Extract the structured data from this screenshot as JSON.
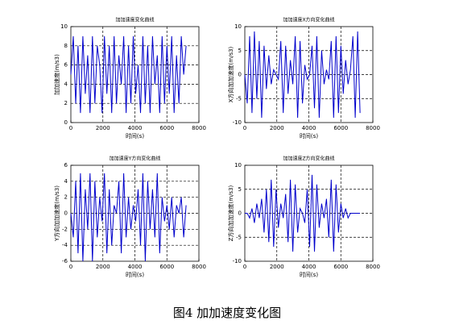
{
  "chart_data": [
    {
      "type": "line",
      "title": "加加速度变化曲线",
      "xlabel": "时间(s)",
      "ylabel": "加加速度(m/s3)",
      "xlim": [
        0,
        8000
      ],
      "xticks": [
        0,
        2000,
        4000,
        6000,
        8000
      ],
      "ylim": [
        0,
        10
      ],
      "yticks": [
        0,
        2,
        4,
        6,
        8,
        10
      ],
      "grid": true,
      "color": "#0000cc",
      "x": [
        0,
        150,
        300,
        450,
        600,
        750,
        900,
        1050,
        1200,
        1350,
        1500,
        1650,
        1800,
        1950,
        2100,
        2250,
        2400,
        2550,
        2700,
        2850,
        3000,
        3150,
        3300,
        3450,
        3600,
        3750,
        3900,
        4050,
        4200,
        4350,
        4500,
        4650,
        4800,
        4950,
        5100,
        5250,
        5400,
        5550,
        5700,
        5850,
        6000,
        6150,
        6300,
        6450,
        6600,
        6750,
        6900,
        7050,
        7200
      ],
      "values": [
        5,
        9,
        2,
        8,
        1,
        9,
        3,
        7,
        1,
        9,
        2,
        8,
        6,
        1,
        9,
        3,
        8,
        1,
        9,
        2,
        7,
        4,
        9,
        1,
        8,
        2,
        9,
        3,
        6,
        1,
        9,
        2,
        8,
        1,
        9,
        4,
        7,
        1,
        9,
        2,
        8,
        3,
        9,
        1,
        7,
        2,
        9,
        5,
        8
      ]
    },
    {
      "type": "line",
      "title": "加加速度X方向变化曲线",
      "xlabel": "时间(s)",
      "ylabel": "X方向加加速度(m/s3)",
      "xlim": [
        0,
        8000
      ],
      "xticks": [
        0,
        2000,
        4000,
        6000,
        8000
      ],
      "ylim": [
        -10,
        10
      ],
      "yticks": [
        -10,
        -5,
        0,
        5,
        10
      ],
      "grid": true,
      "color": "#0000cc",
      "x": [
        0,
        150,
        300,
        450,
        600,
        750,
        900,
        1050,
        1200,
        1350,
        1500,
        1650,
        1800,
        1950,
        2100,
        2250,
        2400,
        2550,
        2700,
        2850,
        3000,
        3150,
        3300,
        3450,
        3600,
        3750,
        3900,
        4050,
        4200,
        4350,
        4500,
        4650,
        4800,
        4950,
        5100,
        5250,
        5400,
        5550,
        5700,
        5850,
        6000,
        6150,
        6300,
        6450,
        6600,
        6750,
        6900,
        7050,
        7200
      ],
      "values": [
        0,
        -6,
        8,
        -8,
        9,
        -5,
        7,
        -9,
        6,
        -3,
        4,
        -2,
        1,
        0,
        -1,
        7,
        -8,
        6,
        -4,
        3,
        -2,
        8,
        -9,
        7,
        -6,
        2,
        -1,
        0,
        6,
        -7,
        8,
        -9,
        5,
        -2,
        1,
        -1,
        7,
        -9,
        8,
        -8,
        6,
        -4,
        3,
        -2,
        1,
        8,
        -9,
        9,
        -8
      ]
    },
    {
      "type": "line",
      "title": "加加速度Y方向变化曲线",
      "xlabel": "时间(s)",
      "ylabel": "Y方向加加速度(m/s3)",
      "xlim": [
        0,
        8000
      ],
      "xticks": [
        0,
        2000,
        4000,
        6000,
        8000
      ],
      "ylim": [
        -6,
        6
      ],
      "yticks": [
        -6,
        -4,
        -2,
        0,
        2,
        4,
        6
      ],
      "grid": true,
      "color": "#0000cc",
      "x": [
        0,
        150,
        300,
        450,
        600,
        750,
        900,
        1050,
        1200,
        1350,
        1500,
        1650,
        1800,
        1950,
        2100,
        2250,
        2400,
        2550,
        2700,
        2850,
        3000,
        3150,
        3300,
        3450,
        3600,
        3750,
        3900,
        4050,
        4200,
        4350,
        4500,
        4650,
        4800,
        4950,
        5100,
        5250,
        5400,
        5550,
        5700,
        5850,
        6000,
        6150,
        6300,
        6450,
        6600,
        6750,
        6900,
        7050,
        7200
      ],
      "values": [
        0,
        -3,
        4,
        -5,
        5,
        -6,
        3,
        -2,
        5,
        -6,
        4,
        -3,
        2,
        -1,
        5,
        -5,
        3,
        -4,
        1,
        0,
        4,
        -5,
        5,
        -3,
        2,
        -2,
        1,
        -1,
        3,
        -4,
        5,
        -6,
        4,
        -2,
        3,
        -3,
        5,
        -5,
        2,
        -1,
        1,
        -2,
        2,
        -3,
        1,
        0,
        2,
        -3,
        1
      ]
    },
    {
      "type": "line",
      "title": "加加速度Z方向变化曲线",
      "xlabel": "时间(s)",
      "ylabel": "Z方向加加速度(m/s3)",
      "xlim": [
        0,
        8000
      ],
      "xticks": [
        0,
        2000,
        4000,
        6000,
        8000
      ],
      "ylim": [
        -10,
        10
      ],
      "yticks": [
        -10,
        -5,
        0,
        5,
        10
      ],
      "grid": true,
      "color": "#0000cc",
      "x": [
        0,
        150,
        300,
        450,
        600,
        750,
        900,
        1050,
        1200,
        1350,
        1500,
        1650,
        1800,
        1950,
        2100,
        2250,
        2400,
        2550,
        2700,
        2850,
        3000,
        3150,
        3300,
        3450,
        3600,
        3750,
        3900,
        4050,
        4200,
        4350,
        4500,
        4650,
        4800,
        4950,
        5100,
        5250,
        5400,
        5550,
        5700,
        5850,
        6000,
        6150,
        6300,
        6450,
        6600,
        6750,
        6900,
        7050,
        7200
      ],
      "values": [
        0,
        0,
        -1,
        1,
        -2,
        2,
        -1,
        3,
        -4,
        5,
        -6,
        7,
        -7,
        5,
        -3,
        2,
        -1,
        4,
        -6,
        7,
        -8,
        6,
        -4,
        1,
        0,
        -2,
        5,
        -7,
        8,
        -8,
        6,
        -3,
        2,
        -1,
        3,
        -5,
        7,
        -8,
        6,
        -4,
        2,
        -1,
        1,
        -1,
        0,
        0,
        0,
        0,
        0
      ]
    }
  ],
  "caption": "图4 加加速度变化图"
}
